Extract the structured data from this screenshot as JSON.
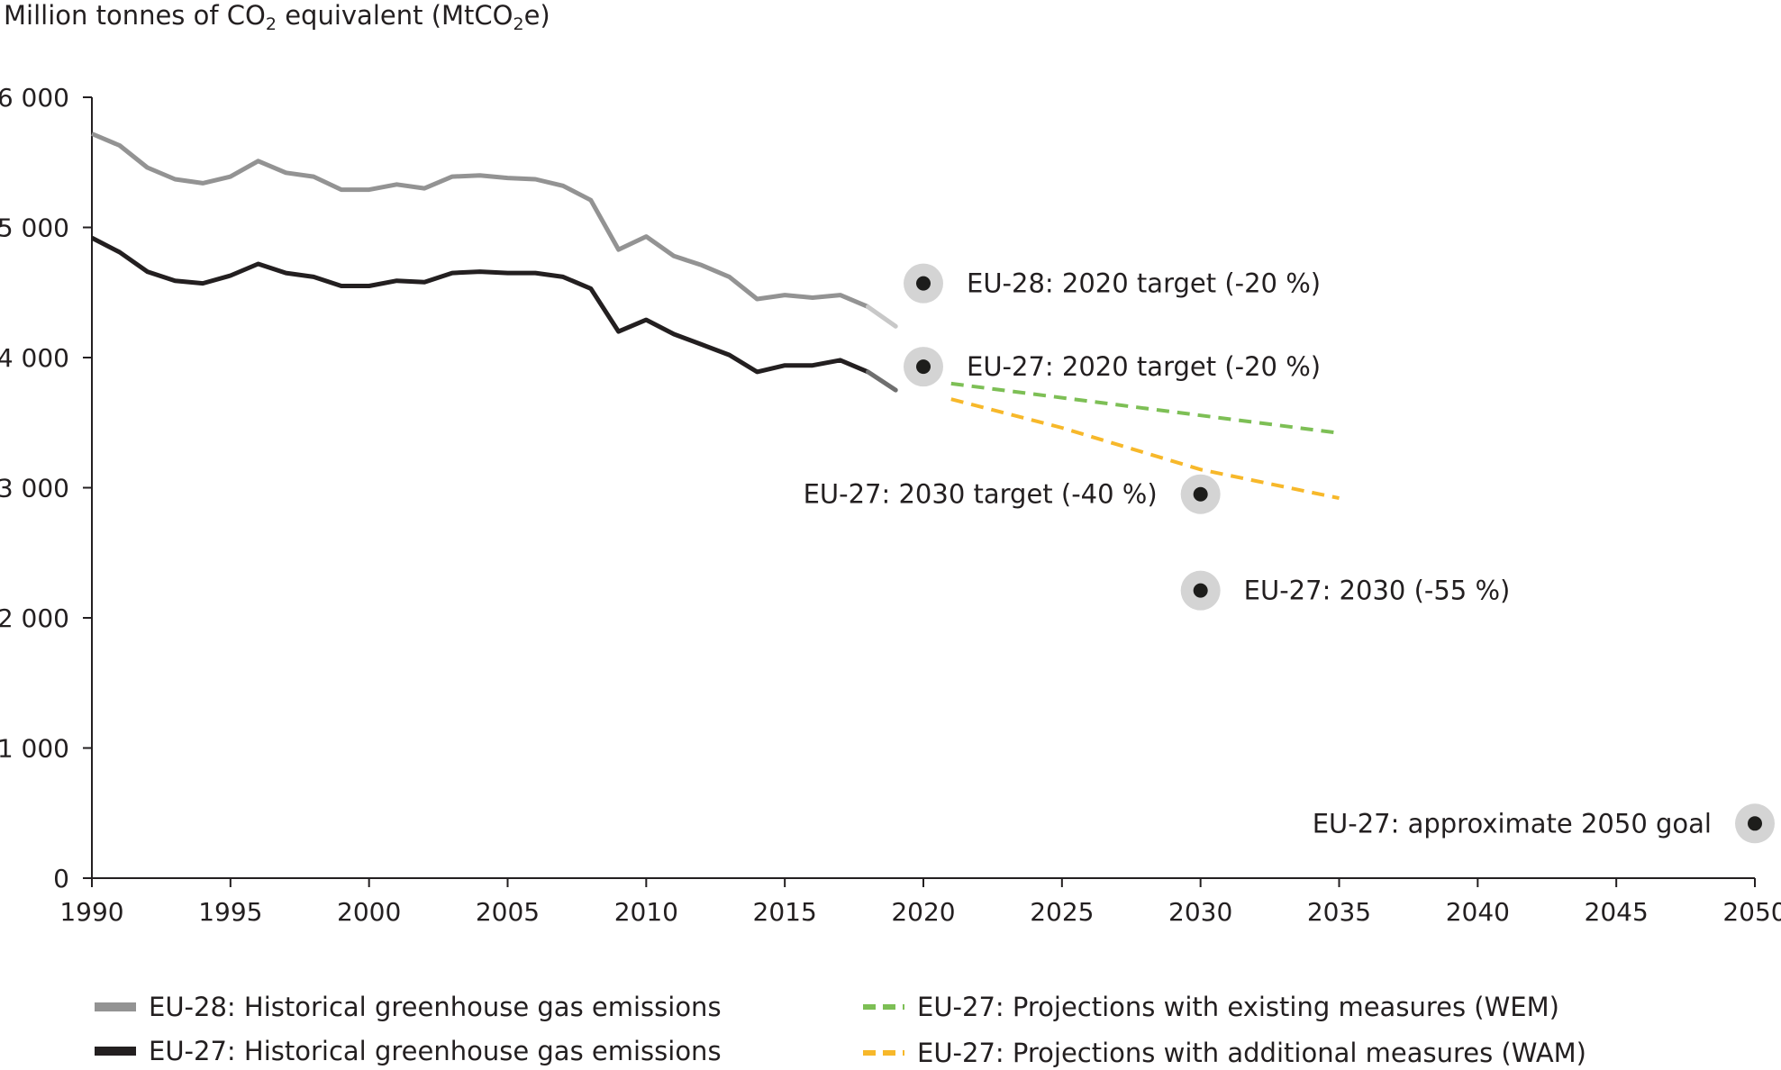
{
  "chart_data": {
    "type": "line",
    "ylabel": {
      "prefix": "Million tonnes of CO",
      "sub1": "2",
      "middle": " equivalent (MtCO",
      "sub2": "2",
      "suffix": "e)"
    },
    "xlim": [
      1990,
      2050
    ],
    "ylim": [
      0,
      6000
    ],
    "x_ticks": [
      1990,
      1995,
      2000,
      2005,
      2010,
      2015,
      2020,
      2025,
      2030,
      2035,
      2040,
      2045,
      2050
    ],
    "y_ticks": [
      {
        "value": 0,
        "label": "0"
      },
      {
        "value": 1000,
        "label": "1 000"
      },
      {
        "value": 2000,
        "label": "2 000"
      },
      {
        "value": 3000,
        "label": "3 000"
      },
      {
        "value": 4000,
        "label": "4 000"
      },
      {
        "value": 5000,
        "label": "5 000"
      },
      {
        "value": 6000,
        "label": "6 000"
      }
    ],
    "grid": false,
    "series": [
      {
        "name": "EU-28: Historical greenhouse gas emissions",
        "color": "#939393",
        "proxy_color": "#c8c8c8",
        "style": "solid",
        "x": [
          1990,
          1991,
          1992,
          1993,
          1994,
          1995,
          1996,
          1997,
          1998,
          1999,
          2000,
          2001,
          2002,
          2003,
          2004,
          2005,
          2006,
          2007,
          2008,
          2009,
          2010,
          2011,
          2012,
          2013,
          2014,
          2015,
          2016,
          2017,
          2018,
          2019
        ],
        "values": [
          5720,
          5630,
          5460,
          5370,
          5340,
          5390,
          5510,
          5420,
          5390,
          5290,
          5290,
          5330,
          5300,
          5390,
          5400,
          5380,
          5370,
          5320,
          5210,
          4830,
          4930,
          4780,
          4710,
          4620,
          4450,
          4480,
          4460,
          4480,
          4390,
          4240
        ]
      },
      {
        "name": "EU-27: Historical greenhouse gas emissions",
        "color": "#231f20",
        "proxy_color": "#6f6f6f",
        "style": "solid",
        "x": [
          1990,
          1991,
          1992,
          1993,
          1994,
          1995,
          1996,
          1997,
          1998,
          1999,
          2000,
          2001,
          2002,
          2003,
          2004,
          2005,
          2006,
          2007,
          2008,
          2009,
          2010,
          2011,
          2012,
          2013,
          2014,
          2015,
          2016,
          2017,
          2018,
          2019
        ],
        "values": [
          4920,
          4810,
          4660,
          4590,
          4570,
          4630,
          4720,
          4650,
          4620,
          4550,
          4550,
          4590,
          4580,
          4650,
          4660,
          4650,
          4650,
          4620,
          4530,
          4200,
          4290,
          4180,
          4100,
          4020,
          3890,
          3940,
          3940,
          3980,
          3890,
          3750
        ]
      },
      {
        "name": "EU-27: Projections with existing measures (WEM)",
        "color": "#7dbf55",
        "style": "dashed",
        "x": [
          2021,
          2035
        ],
        "values": [
          3800,
          3420
        ]
      },
      {
        "name": "EU-27: Projections with additional measures (WAM)",
        "color": "#f7b82a",
        "style": "dashed",
        "x": [
          2021,
          2025,
          2030,
          2035
        ],
        "values": [
          3680,
          3460,
          3140,
          2920
        ]
      }
    ],
    "targets": [
      {
        "label": "EU-28: 2020 target (-20 %)",
        "x": 2020,
        "y": 4570,
        "label_side": "right"
      },
      {
        "label": "EU-27: 2020 target (-20 %)",
        "x": 2020,
        "y": 3930,
        "label_side": "right"
      },
      {
        "label": "EU-27: 2030 target (-40 %)",
        "x": 2030,
        "y": 2950,
        "label_side": "left"
      },
      {
        "label": "EU-27: 2030 (-55 %)",
        "x": 2030,
        "y": 2210,
        "label_side": "right"
      },
      {
        "label": "EU-27: approximate 2050 goal",
        "x": 2050,
        "y": 420,
        "label_side": "left"
      }
    ]
  },
  "legend": [
    {
      "label": "EU-28: Historical greenhouse gas emissions",
      "color": "#939393",
      "style": "solid"
    },
    {
      "label": "EU-27: Historical greenhouse gas emissions",
      "color": "#231f20",
      "style": "solid"
    },
    {
      "label": "EU-27: Projections with existing measures (WEM)",
      "color": "#7dbf55",
      "style": "dashed"
    },
    {
      "label": "EU-27: Projections with additional measures (WAM)",
      "color": "#f7b82a",
      "style": "dashed"
    }
  ]
}
